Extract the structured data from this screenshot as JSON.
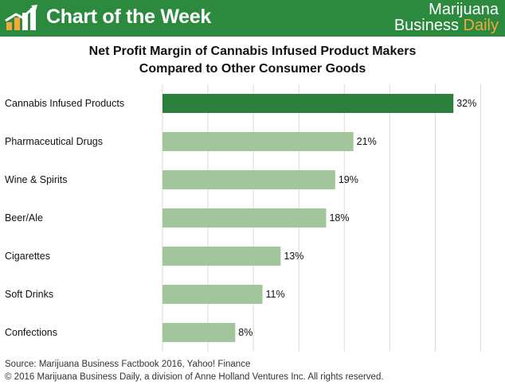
{
  "header": {
    "title": "Chart of the Week",
    "brand_line1": "Marijuana",
    "brand_line2_a": "Business",
    "brand_line2_b": "Daily",
    "accent_color": "#f3a83b",
    "bg_color": "#2c8a3e",
    "logo_icon": "rising-bar-chart-icon"
  },
  "chart_data": {
    "type": "bar",
    "orientation": "horizontal",
    "title_line1": "Net Profit Margin of Cannabis Infused Product Makers",
    "title_line2": "Compared to Other Consumer Goods",
    "categories": [
      "Cannabis Infused Products",
      "Pharmaceutical Drugs",
      "Wine & Spirits",
      "Beer/Ale",
      "Cigarettes",
      "Soft Drinks",
      "Confections"
    ],
    "values": [
      32,
      21,
      19,
      18,
      13,
      11,
      8
    ],
    "value_labels": [
      "32%",
      "21%",
      "19%",
      "18%",
      "13%",
      "11%",
      "8%"
    ],
    "xlim": [
      0,
      37.5
    ],
    "highlight_color": "#2a7f3a",
    "bar_color": "#a3c59a",
    "grid": "vertical"
  },
  "footer": {
    "source": "Source:  Marijuana Business Factbook 2016, Yahoo! Finance",
    "copyright": "© 2016 Marijuana Business Daily, a division of Anne Holland Ventures Inc. All rights reserved."
  }
}
